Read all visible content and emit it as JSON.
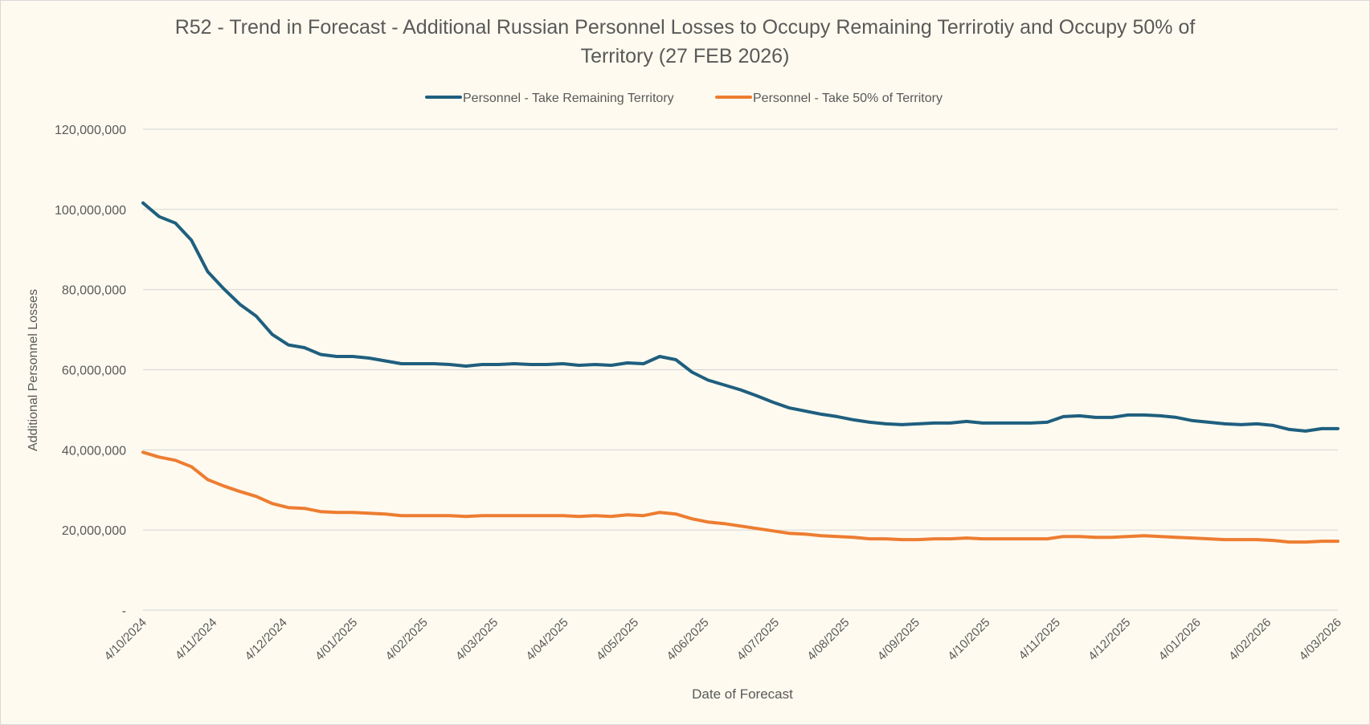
{
  "chart_data": {
    "type": "line",
    "title_line1": "R52 - Trend in Forecast - Additional Russian Personnel Losses to Occupy Remaining Terrirotiy and Occupy 50% of",
    "title_line2": "Territory  (27 FEB 2026)",
    "xlabel": "Date of Forecast",
    "ylabel": "Additional Personnel Losses",
    "ylim": [
      0,
      120000000
    ],
    "y_ticks": [
      {
        "value": 0,
        "label": "-"
      },
      {
        "value": 20000000,
        "label": "20,000,000"
      },
      {
        "value": 40000000,
        "label": "40,000,000"
      },
      {
        "value": 60000000,
        "label": "60,000,000"
      },
      {
        "value": 80000000,
        "label": "80,000,000"
      },
      {
        "value": 100000000,
        "label": "100,000,000"
      },
      {
        "value": 120000000,
        "label": "120,000,000"
      }
    ],
    "grid": true,
    "legend_position": "top-center",
    "x_tick_labels": [
      "4/10/2024",
      "4/11/2024",
      "4/12/2024",
      "4/01/2025",
      "4/02/2025",
      "4/03/2025",
      "4/04/2025",
      "4/05/2025",
      "4/06/2025",
      "4/07/2025",
      "4/08/2025",
      "4/09/2025",
      "4/10/2025",
      "4/11/2025",
      "4/12/2025",
      "4/01/2026",
      "4/02/2026",
      "4/03/2026"
    ],
    "point_count": 75,
    "series": [
      {
        "name": "Personnel - Take Remaining Territory",
        "color": "#1f5f7f",
        "values": [
          101600000,
          98200000,
          96600000,
          92300000,
          84500000,
          80200000,
          76300000,
          73400000,
          68800000,
          66200000,
          65500000,
          63800000,
          63300000,
          63300000,
          62900000,
          62200000,
          61500000,
          61500000,
          61500000,
          61300000,
          60900000,
          61300000,
          61300000,
          61500000,
          61300000,
          61300000,
          61500000,
          61100000,
          61300000,
          61100000,
          61700000,
          61500000,
          63300000,
          62500000,
          59400000,
          57400000,
          56200000,
          55000000,
          53500000,
          51900000,
          50500000,
          49700000,
          48900000,
          48300000,
          47500000,
          46900000,
          46500000,
          46300000,
          46500000,
          46700000,
          46700000,
          47100000,
          46700000,
          46700000,
          46700000,
          46700000,
          46900000,
          48300000,
          48500000,
          48100000,
          48100000,
          48700000,
          48700000,
          48500000,
          48100000,
          47300000,
          46900000,
          46500000,
          46300000,
          46500000,
          46100000,
          45100000,
          44700000,
          45300000,
          45300000
        ]
      },
      {
        "name": "Personnel - Take 50% of Territory",
        "color": "#ed7d31",
        "values": [
          39400000,
          38200000,
          37400000,
          35800000,
          32600000,
          31000000,
          29600000,
          28400000,
          26600000,
          25600000,
          25400000,
          24600000,
          24400000,
          24400000,
          24200000,
          24000000,
          23600000,
          23600000,
          23600000,
          23600000,
          23400000,
          23600000,
          23600000,
          23600000,
          23600000,
          23600000,
          23600000,
          23400000,
          23600000,
          23400000,
          23800000,
          23600000,
          24400000,
          24000000,
          22800000,
          22000000,
          21600000,
          21000000,
          20400000,
          19800000,
          19200000,
          19000000,
          18600000,
          18400000,
          18200000,
          17800000,
          17800000,
          17600000,
          17600000,
          17800000,
          17800000,
          18000000,
          17800000,
          17800000,
          17800000,
          17800000,
          17800000,
          18400000,
          18400000,
          18200000,
          18200000,
          18400000,
          18600000,
          18400000,
          18200000,
          18000000,
          17800000,
          17600000,
          17600000,
          17600000,
          17400000,
          17000000,
          17000000,
          17200000,
          17200000
        ]
      }
    ]
  }
}
